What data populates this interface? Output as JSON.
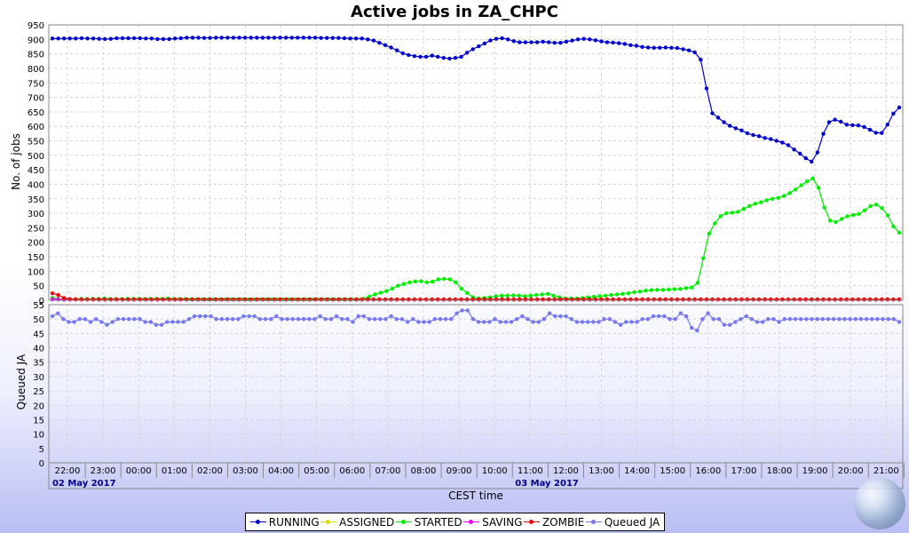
{
  "chart_data": [
    {
      "type": "line",
      "title": "Active jobs in ZA_CHPC",
      "ylabel": "No. of jobs",
      "ylim": [
        0,
        950
      ],
      "yticks": [
        0,
        50,
        100,
        150,
        200,
        250,
        300,
        350,
        400,
        450,
        500,
        550,
        600,
        650,
        700,
        750,
        800,
        850,
        900,
        950
      ],
      "grid": true,
      "series": [
        {
          "name": "RUNNING",
          "color": "#0000cc",
          "values": [
            903,
            903,
            903,
            903,
            903,
            904,
            903,
            903,
            902,
            901,
            902,
            904,
            904,
            904,
            904,
            904,
            903,
            903,
            901,
            901,
            901,
            903,
            904,
            906,
            906,
            906,
            905,
            905,
            906,
            906,
            906,
            906,
            906,
            906,
            906,
            906,
            906,
            906,
            906,
            906,
            906,
            906,
            906,
            906,
            906,
            906,
            905,
            905,
            905,
            905,
            904,
            903,
            903,
            903,
            900,
            896,
            888,
            880,
            872,
            862,
            852,
            846,
            842,
            840,
            840,
            844,
            840,
            836,
            834,
            836,
            840,
            854,
            866,
            876,
            886,
            896,
            902,
            904,
            900,
            894,
            890,
            890,
            890,
            890,
            892,
            890,
            888,
            888,
            892,
            896,
            900,
            902,
            900,
            897,
            893,
            890,
            889,
            887,
            884,
            880,
            878,
            874,
            872,
            871,
            871,
            872,
            871,
            870,
            866,
            862,
            855,
            830,
            731,
            645,
            630,
            614,
            602,
            593,
            586,
            576,
            570,
            566,
            560,
            556,
            550,
            544,
            535,
            520,
            506,
            490,
            478,
            510,
            574,
            614,
            623,
            616,
            606,
            604,
            603,
            598,
            588,
            578,
            577,
            606,
            644,
            665
          ]
        },
        {
          "name": "ASSIGNED",
          "color": "#dddd00",
          "values": [
            4,
            3,
            2,
            2,
            2,
            2,
            2,
            2,
            2,
            2,
            2,
            2,
            2,
            2,
            2,
            2,
            2,
            2,
            2,
            2,
            2,
            2,
            2,
            2,
            2,
            2,
            2,
            2,
            2,
            2,
            2,
            2,
            2,
            2,
            2,
            2,
            2,
            2,
            2,
            2,
            2,
            2,
            2,
            2,
            2,
            2,
            2,
            2,
            2,
            2,
            2,
            2,
            2,
            2,
            2,
            2,
            2,
            2,
            2,
            2,
            2,
            2,
            2,
            2,
            2,
            2,
            2,
            2,
            2,
            2,
            2,
            2,
            2,
            2,
            2,
            2,
            2,
            2,
            2,
            2,
            2,
            2,
            2,
            2,
            2,
            2,
            2,
            2,
            2,
            2,
            2,
            2,
            2,
            2,
            2,
            2,
            2,
            2,
            2,
            2,
            2,
            2,
            2,
            2,
            2,
            2,
            2,
            2,
            2,
            2,
            2,
            2,
            2,
            2,
            2,
            2,
            2,
            2,
            2,
            2,
            2,
            2,
            2,
            2,
            2,
            2,
            2,
            2,
            2,
            2,
            2,
            2,
            2,
            2,
            2,
            2,
            2,
            2,
            2,
            2,
            2,
            2,
            2,
            2,
            2,
            2
          ]
        },
        {
          "name": "STARTED",
          "color": "#00ee00",
          "values": [
            8,
            5,
            4,
            4,
            4,
            5,
            4,
            5,
            5,
            6,
            4,
            4,
            4,
            5,
            5,
            5,
            4,
            5,
            5,
            5,
            6,
            4,
            4,
            4,
            3,
            3,
            3,
            3,
            3,
            3,
            3,
            3,
            3,
            3,
            3,
            3,
            3,
            3,
            3,
            3,
            3,
            3,
            3,
            3,
            3,
            3,
            3,
            3,
            3,
            3,
            3,
            3,
            3,
            3,
            5,
            12,
            20,
            26,
            32,
            40,
            50,
            56,
            62,
            65,
            66,
            62,
            64,
            72,
            74,
            72,
            62,
            40,
            25,
            10,
            6,
            8,
            10,
            14,
            16,
            16,
            17,
            16,
            14,
            16,
            18,
            20,
            22,
            16,
            10,
            6,
            6,
            6,
            8,
            10,
            12,
            14,
            16,
            18,
            20,
            22,
            24,
            28,
            30,
            33,
            35,
            36,
            36,
            37,
            38,
            39,
            42,
            44,
            60,
            145,
            230,
            265,
            290,
            300,
            302,
            305,
            315,
            325,
            333,
            338,
            345,
            350,
            353,
            360,
            370,
            382,
            397,
            410,
            420,
            388,
            320,
            275,
            270,
            280,
            290,
            294,
            298,
            310,
            325,
            330,
            318,
            293,
            255,
            233
          ]
        },
        {
          "name": "SAVING",
          "color": "#ee00ee",
          "values": [
            3,
            3,
            2,
            2,
            2,
            2,
            2,
            2,
            2,
            2,
            2,
            2,
            2,
            2,
            2,
            2,
            2,
            2,
            2,
            2,
            2,
            2,
            2,
            2,
            2,
            2,
            2,
            2,
            2,
            2,
            2,
            2,
            2,
            2,
            2,
            2,
            2,
            2,
            2,
            2,
            2,
            2,
            2,
            2,
            2,
            2,
            2,
            2,
            2,
            2,
            2,
            2,
            2,
            2,
            2,
            2,
            2,
            2,
            2,
            2,
            2,
            2,
            2,
            2,
            2,
            2,
            2,
            2,
            2,
            2,
            2,
            2,
            2,
            2,
            2,
            2,
            2,
            2,
            2,
            2,
            2,
            2,
            2,
            2,
            2,
            2,
            2,
            2,
            2,
            2,
            2,
            2,
            2,
            2,
            2,
            2,
            2,
            2,
            2,
            2,
            2,
            2,
            2,
            2,
            2,
            2,
            2,
            2,
            2,
            2,
            2,
            2,
            2,
            2,
            2,
            2,
            2,
            2,
            2,
            2,
            2,
            2,
            2,
            2,
            2,
            2,
            2,
            2,
            2,
            2,
            2,
            2,
            2,
            2,
            2,
            2,
            2,
            2,
            2,
            2,
            2,
            2,
            2,
            2,
            2,
            2
          ]
        },
        {
          "name": "ZOMBIE",
          "color": "#ee0000",
          "values": [
            24,
            18,
            8,
            4,
            3,
            3,
            3,
            3,
            3,
            3,
            3,
            3,
            3,
            3,
            3,
            3,
            3,
            3,
            3,
            3,
            3,
            3,
            3,
            3,
            3,
            3,
            3,
            3,
            3,
            3,
            3,
            3,
            3,
            3,
            3,
            3,
            3,
            3,
            3,
            3,
            3,
            3,
            3,
            3,
            3,
            3,
            3,
            3,
            3,
            3,
            3,
            3,
            3,
            3,
            3,
            3,
            3,
            3,
            3,
            3,
            3,
            3,
            3,
            3,
            3,
            3,
            3,
            3,
            3,
            3,
            3,
            3,
            3,
            3,
            3,
            3,
            3,
            3,
            3,
            3,
            3,
            3,
            3,
            3,
            3,
            3,
            3,
            3,
            3,
            3,
            3,
            3,
            3,
            3,
            3,
            3,
            3,
            3,
            3,
            3,
            3,
            3,
            3,
            3,
            3,
            3,
            3,
            3,
            3,
            3,
            3,
            3,
            3,
            3,
            3,
            3,
            3,
            3,
            3,
            3,
            3,
            3,
            3,
            3,
            3,
            3,
            3,
            3,
            3,
            3,
            3,
            3,
            3,
            3,
            3,
            3,
            3,
            3,
            3,
            3,
            3,
            3,
            3,
            3,
            3,
            3
          ]
        }
      ]
    },
    {
      "type": "line",
      "ylabel": "Queued JA",
      "ylim": [
        0,
        55
      ],
      "yticks": [
        0,
        5,
        10,
        15,
        20,
        25,
        30,
        35,
        40,
        45,
        50,
        55
      ],
      "grid": true,
      "xlabel": "CEST time",
      "x_ticks": [
        "22:00",
        "23:00",
        "00:00",
        "01:00",
        "02:00",
        "03:00",
        "04:00",
        "05:00",
        "06:00",
        "07:00",
        "08:00",
        "09:00",
        "10:00",
        "11:00",
        "12:00",
        "13:00",
        "14:00",
        "15:00",
        "16:00",
        "17:00",
        "18:00",
        "19:00",
        "20:00",
        "21:00"
      ],
      "date_labels": [
        {
          "label": "02 May 2017",
          "at": "22:00"
        },
        {
          "label": "03 May 2017",
          "at": "11:00"
        }
      ],
      "series": [
        {
          "name": "Queued JA",
          "color": "#7777ee",
          "values": [
            51,
            52,
            50,
            49,
            49,
            50,
            50,
            49,
            50,
            49,
            48,
            49,
            50,
            50,
            50,
            50,
            50,
            49,
            49,
            48,
            48,
            49,
            49,
            49,
            49,
            50,
            51,
            51,
            51,
            51,
            50,
            50,
            50,
            50,
            50,
            51,
            51,
            51,
            50,
            50,
            50,
            51,
            50,
            50,
            50,
            50,
            50,
            50,
            50,
            51,
            50,
            50,
            51,
            50,
            50,
            49,
            51,
            51,
            50,
            50,
            50,
            50,
            51,
            50,
            50,
            49,
            50,
            49,
            49,
            49,
            50,
            50,
            50,
            50,
            52,
            53,
            53,
            50,
            49,
            49,
            49,
            50,
            49,
            49,
            49,
            50,
            51,
            50,
            49,
            49,
            50,
            52,
            51,
            51,
            51,
            50,
            49,
            49,
            49,
            49,
            49,
            50,
            50,
            49,
            48,
            49,
            49,
            49,
            50,
            50,
            51,
            51,
            51,
            50,
            50,
            52,
            51,
            47,
            46,
            50,
            52,
            50,
            50,
            48,
            48,
            49,
            50,
            51,
            50,
            49,
            49,
            50,
            50,
            49,
            50,
            50,
            50,
            50,
            50,
            50,
            50,
            50,
            50,
            50,
            50,
            50,
            50,
            50,
            50,
            50,
            50,
            50,
            50,
            50,
            50,
            49
          ]
        }
      ]
    }
  ]
}
